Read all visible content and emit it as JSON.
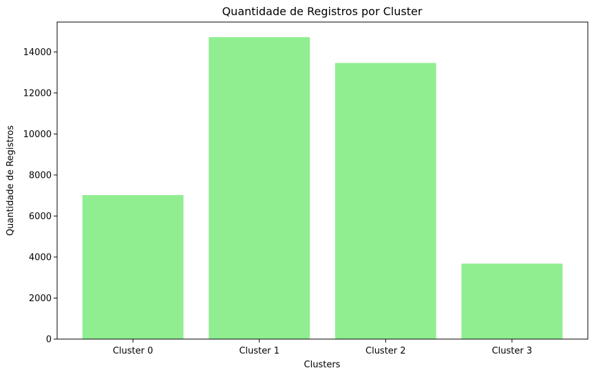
{
  "chart_data": {
    "type": "bar",
    "title": "Quantidade de Registros por Cluster",
    "xlabel": "Clusters",
    "ylabel": "Quantidade de Registros",
    "categories": [
      "Cluster 0",
      "Cluster 1",
      "Cluster 2",
      "Cluster 3"
    ],
    "values": [
      7020,
      14720,
      13460,
      3680
    ],
    "ylim": [
      0,
      15456
    ],
    "yticks": [
      0,
      2000,
      4000,
      6000,
      8000,
      10000,
      12000,
      14000
    ],
    "ytick_labels": [
      "0",
      "2000",
      "4000",
      "6000",
      "8000",
      "10000",
      "12000",
      "14000"
    ],
    "bar_color": "#90ee90",
    "grid": false,
    "legend": "none"
  }
}
